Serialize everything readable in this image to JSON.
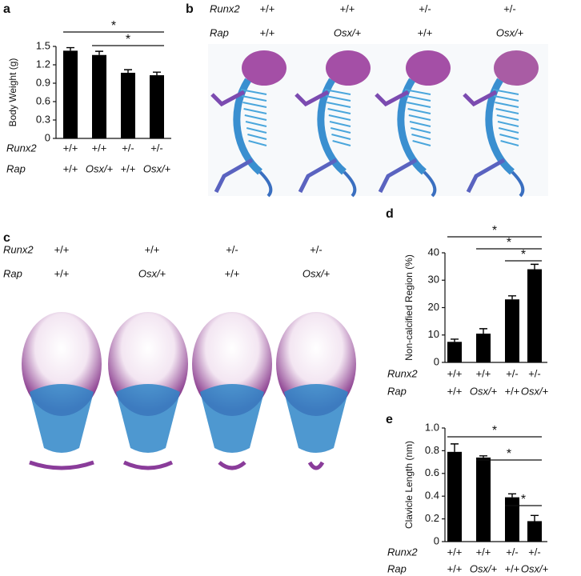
{
  "chart_data": [
    {
      "type": "bar",
      "panel": "a",
      "ylabel": "Body Weight (g)",
      "row_titles": [
        "Runx2",
        "Rap"
      ],
      "categories": [
        "+/+",
        "+/+",
        "+/-",
        "+/-"
      ],
      "categories_2": [
        "+/+",
        "Osx/+",
        "+/+",
        "Osx/+"
      ],
      "values": [
        1.43,
        1.36,
        1.07,
        1.03
      ],
      "errors": [
        0.05,
        0.06,
        0.05,
        0.05
      ],
      "color": "#000000",
      "ylim": [
        0,
        1.5
      ],
      "yticks": [
        0,
        0.3,
        0.6,
        0.9,
        1.2,
        1.5
      ],
      "significance": [
        {
          "label": "*",
          "between": [
            0,
            3
          ]
        },
        {
          "label": "*",
          "between": [
            1,
            3
          ]
        }
      ]
    },
    {
      "type": "bar",
      "panel": "d",
      "ylabel": "Non-calcified Region (%)",
      "row_titles": [
        "Runx2",
        "Rap"
      ],
      "categories": [
        "+/+",
        "+/+",
        "+/-",
        "+/-"
      ],
      "categories_2": [
        "+/+",
        "Osx/+",
        "+/+",
        "Osx/+"
      ],
      "values": [
        7.5,
        10.5,
        23,
        34
      ],
      "errors": [
        1,
        1.8,
        1.3,
        1.8
      ],
      "color": "#000000",
      "ylim": [
        0,
        40
      ],
      "yticks": [
        0,
        10,
        20,
        30,
        40
      ],
      "significance": [
        {
          "label": "*",
          "between": [
            0,
            3
          ]
        },
        {
          "label": "*",
          "between": [
            1,
            3
          ]
        },
        {
          "label": "*",
          "between": [
            2,
            3
          ]
        }
      ]
    },
    {
      "type": "bar",
      "panel": "e",
      "ylabel": "Clavicle Length (nm)",
      "row_titles": [
        "Runx2",
        "Rap"
      ],
      "categories": [
        "+/+",
        "+/+",
        "+/-",
        "+/-"
      ],
      "categories_2": [
        "+/+",
        "Osx/+",
        "+/+",
        "Osx/+"
      ],
      "values": [
        0.79,
        0.74,
        0.39,
        0.18
      ],
      "errors": [
        0.07,
        0.015,
        0.03,
        0.05
      ],
      "color": "#000000",
      "ylim": [
        0,
        1
      ],
      "yticks": [
        0,
        0.2,
        0.4,
        0.6,
        0.8,
        {
          "value": 1,
          "label": "1.0"
        }
      ],
      "significance": [
        {
          "label": "*",
          "between": [
            0,
            3
          ]
        },
        {
          "label": "*",
          "between": [
            1,
            3
          ]
        },
        {
          "label": "*",
          "between": [
            2,
            3
          ]
        }
      ]
    }
  ],
  "panel_b": {
    "panel": "b",
    "row_titles": [
      "Runx2",
      "Rap"
    ],
    "runx2": [
      "+/+",
      "+/+",
      "+/-",
      "+/-"
    ],
    "rap": [
      "+/+",
      "Osx/+",
      "+/+",
      "Osx/+"
    ]
  },
  "panel_c": {
    "panel": "c",
    "row_titles": [
      "Runx2",
      "Rap"
    ],
    "runx2": [
      "+/+",
      "+/+",
      "+/-",
      "+/-"
    ],
    "rap": [
      "+/+",
      "Osx/+",
      "+/+",
      "Osx/+"
    ]
  }
}
